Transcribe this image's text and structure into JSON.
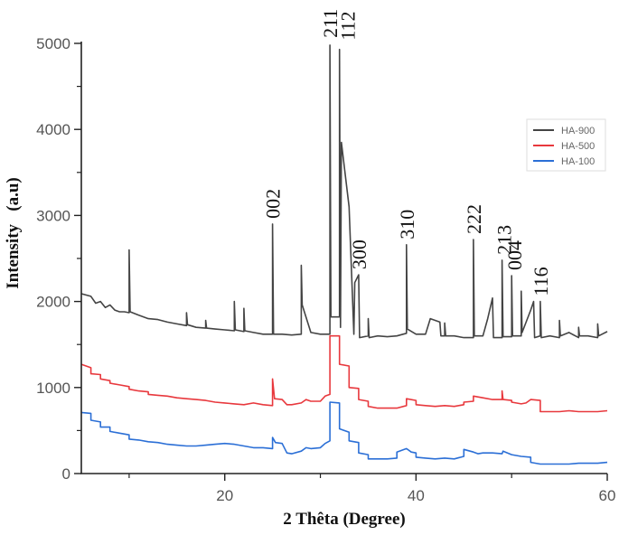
{
  "chart_data": {
    "type": "line",
    "title": "",
    "xlabel": "2 Thêta (Degree)",
    "ylabel": "Intensity   (a.u)",
    "xlim": [
      5,
      60
    ],
    "ylim": [
      0,
      5000
    ],
    "x_ticks": [
      20,
      40,
      60
    ],
    "x_minor_ticks": [
      10,
      30,
      50
    ],
    "y_ticks": [
      0,
      1000,
      2000,
      3000,
      4000,
      5000
    ],
    "y_minor_ticks": [
      500,
      1500,
      2500,
      3500,
      4500
    ],
    "grid": false,
    "legend_position": "upper right",
    "series": [
      {
        "name": "HA-900",
        "color": "#444444",
        "points": [
          [
            5,
            2090
          ],
          [
            6,
            2060
          ],
          [
            6.5,
            1980
          ],
          [
            7,
            2000
          ],
          [
            7.5,
            1930
          ],
          [
            8,
            1960
          ],
          [
            8.5,
            1900
          ],
          [
            9,
            1880
          ],
          [
            9.5,
            1880
          ],
          [
            10,
            1870
          ],
          [
            10,
            2600
          ],
          [
            10.1,
            1880
          ],
          [
            11,
            1840
          ],
          [
            12,
            1800
          ],
          [
            13,
            1790
          ],
          [
            14,
            1760
          ],
          [
            15,
            1740
          ],
          [
            16,
            1720
          ],
          [
            16,
            1870
          ],
          [
            16.1,
            1730
          ],
          [
            17,
            1700
          ],
          [
            18,
            1690
          ],
          [
            18,
            1780
          ],
          [
            18.1,
            1690
          ],
          [
            19,
            1680
          ],
          [
            20,
            1670
          ],
          [
            21,
            1660
          ],
          [
            21,
            2000
          ],
          [
            21.1,
            1670
          ],
          [
            22,
            1650
          ],
          [
            22,
            1920
          ],
          [
            22.1,
            1660
          ],
          [
            23,
            1640
          ],
          [
            24,
            1620
          ],
          [
            25,
            1620
          ],
          [
            25,
            2900
          ],
          [
            25.1,
            1620
          ],
          [
            26,
            1620
          ],
          [
            27,
            1610
          ],
          [
            28,
            1620
          ],
          [
            28,
            2420
          ],
          [
            28.1,
            1960
          ],
          [
            29,
            1640
          ],
          [
            30,
            1620
          ],
          [
            31,
            1620
          ],
          [
            31,
            4980
          ],
          [
            31.1,
            1820
          ],
          [
            32,
            1820
          ],
          [
            32,
            4930
          ],
          [
            32.1,
            1700
          ],
          [
            32.2,
            3850
          ],
          [
            33,
            3100
          ],
          [
            33.5,
            1620
          ],
          [
            33.6,
            2220
          ],
          [
            34,
            2310
          ],
          [
            34.1,
            1580
          ],
          [
            35,
            1600
          ],
          [
            35,
            1800
          ],
          [
            35.1,
            1580
          ],
          [
            36,
            1600
          ],
          [
            37,
            1590
          ],
          [
            38,
            1600
          ],
          [
            39,
            1630
          ],
          [
            39,
            2660
          ],
          [
            39.1,
            1680
          ],
          [
            40,
            1620
          ],
          [
            41,
            1620
          ],
          [
            41.5,
            1800
          ],
          [
            42,
            1780
          ],
          [
            42.5,
            1760
          ],
          [
            42.6,
            1600
          ],
          [
            43,
            1600
          ],
          [
            43,
            1750
          ],
          [
            43.1,
            1600
          ],
          [
            44,
            1600
          ],
          [
            45,
            1580
          ],
          [
            46,
            1580
          ],
          [
            46,
            2720
          ],
          [
            46.1,
            1600
          ],
          [
            47,
            1600
          ],
          [
            47.5,
            1800
          ],
          [
            48,
            2040
          ],
          [
            48.1,
            1580
          ],
          [
            49,
            1580
          ],
          [
            49,
            2480
          ],
          [
            49.1,
            1590
          ],
          [
            50,
            1590
          ],
          [
            50,
            2300
          ],
          [
            50.1,
            1600
          ],
          [
            51,
            1600
          ],
          [
            51,
            2120
          ],
          [
            51.1,
            1640
          ],
          [
            52,
            1900
          ],
          [
            52.3,
            2000
          ],
          [
            52.4,
            1580
          ],
          [
            53,
            1600
          ],
          [
            53,
            2000
          ],
          [
            53.1,
            1580
          ],
          [
            54,
            1600
          ],
          [
            55,
            1580
          ],
          [
            55,
            1780
          ],
          [
            55.1,
            1600
          ],
          [
            56,
            1640
          ],
          [
            57,
            1580
          ],
          [
            57,
            1700
          ],
          [
            57.1,
            1600
          ],
          [
            58,
            1600
          ],
          [
            59,
            1580
          ],
          [
            59,
            1740
          ],
          [
            59.1,
            1600
          ],
          [
            60,
            1650
          ]
        ]
      },
      {
        "name": "HA-500",
        "color": "#e8383d",
        "points": [
          [
            5,
            1270
          ],
          [
            6,
            1230
          ],
          [
            6,
            1160
          ],
          [
            7,
            1150
          ],
          [
            7,
            1100
          ],
          [
            8,
            1080
          ],
          [
            8,
            1050
          ],
          [
            9,
            1030
          ],
          [
            10,
            1010
          ],
          [
            10,
            980
          ],
          [
            11,
            960
          ],
          [
            12,
            950
          ],
          [
            12,
            920
          ],
          [
            13,
            910
          ],
          [
            14,
            900
          ],
          [
            15,
            880
          ],
          [
            16,
            870
          ],
          [
            17,
            860
          ],
          [
            18,
            850
          ],
          [
            19,
            830
          ],
          [
            20,
            820
          ],
          [
            21,
            810
          ],
          [
            22,
            800
          ],
          [
            23,
            820
          ],
          [
            24,
            800
          ],
          [
            25,
            790
          ],
          [
            25,
            1100
          ],
          [
            25.2,
            870
          ],
          [
            26,
            860
          ],
          [
            26.5,
            800
          ],
          [
            27,
            800
          ],
          [
            28,
            820
          ],
          [
            28.5,
            860
          ],
          [
            29,
            840
          ],
          [
            30,
            840
          ],
          [
            30.5,
            900
          ],
          [
            31,
            920
          ],
          [
            31,
            1600
          ],
          [
            32,
            1600
          ],
          [
            32,
            1270
          ],
          [
            33,
            1250
          ],
          [
            33,
            1000
          ],
          [
            34,
            990
          ],
          [
            34,
            860
          ],
          [
            35,
            840
          ],
          [
            35,
            780
          ],
          [
            36,
            760
          ],
          [
            37,
            760
          ],
          [
            38,
            760
          ],
          [
            39,
            790
          ],
          [
            39,
            870
          ],
          [
            40,
            850
          ],
          [
            40,
            800
          ],
          [
            41,
            790
          ],
          [
            42,
            780
          ],
          [
            43,
            790
          ],
          [
            44,
            780
          ],
          [
            45,
            800
          ],
          [
            45,
            830
          ],
          [
            46,
            840
          ],
          [
            46,
            900
          ],
          [
            47,
            880
          ],
          [
            48,
            860
          ],
          [
            49,
            860
          ],
          [
            49,
            960
          ],
          [
            49.1,
            860
          ],
          [
            50,
            850
          ],
          [
            50,
            830
          ],
          [
            51,
            810
          ],
          [
            51.5,
            820
          ],
          [
            52,
            860
          ],
          [
            53,
            850
          ],
          [
            53,
            720
          ],
          [
            54,
            720
          ],
          [
            55,
            720
          ],
          [
            56,
            730
          ],
          [
            57,
            720
          ],
          [
            58,
            720
          ],
          [
            59,
            720
          ],
          [
            60,
            730
          ]
        ]
      },
      {
        "name": "HA-100",
        "color": "#2b6fd6",
        "points": [
          [
            5,
            710
          ],
          [
            6,
            700
          ],
          [
            6,
            620
          ],
          [
            7,
            600
          ],
          [
            7,
            540
          ],
          [
            8,
            540
          ],
          [
            8,
            490
          ],
          [
            9,
            470
          ],
          [
            10,
            450
          ],
          [
            10,
            400
          ],
          [
            11,
            390
          ],
          [
            12,
            370
          ],
          [
            13,
            360
          ],
          [
            14,
            340
          ],
          [
            15,
            330
          ],
          [
            16,
            320
          ],
          [
            17,
            320
          ],
          [
            18,
            330
          ],
          [
            19,
            340
          ],
          [
            20,
            350
          ],
          [
            21,
            340
          ],
          [
            22,
            320
          ],
          [
            23,
            300
          ],
          [
            24,
            300
          ],
          [
            25,
            290
          ],
          [
            25,
            420
          ],
          [
            25.3,
            360
          ],
          [
            26,
            350
          ],
          [
            26.5,
            240
          ],
          [
            27,
            230
          ],
          [
            28,
            260
          ],
          [
            28.5,
            300
          ],
          [
            29,
            290
          ],
          [
            30,
            300
          ],
          [
            30.5,
            350
          ],
          [
            31,
            380
          ],
          [
            31,
            830
          ],
          [
            32,
            820
          ],
          [
            32,
            520
          ],
          [
            33,
            480
          ],
          [
            33,
            380
          ],
          [
            34,
            360
          ],
          [
            34,
            240
          ],
          [
            35,
            220
          ],
          [
            35,
            170
          ],
          [
            36,
            170
          ],
          [
            37,
            170
          ],
          [
            38,
            180
          ],
          [
            38,
            250
          ],
          [
            39,
            290
          ],
          [
            39.5,
            250
          ],
          [
            40,
            240
          ],
          [
            40,
            190
          ],
          [
            41,
            180
          ],
          [
            42,
            170
          ],
          [
            43,
            180
          ],
          [
            44,
            170
          ],
          [
            45,
            200
          ],
          [
            45,
            280
          ],
          [
            46,
            250
          ],
          [
            46.5,
            230
          ],
          [
            47,
            240
          ],
          [
            48,
            240
          ],
          [
            49,
            230
          ],
          [
            49.1,
            260
          ],
          [
            50,
            220
          ],
          [
            51,
            200
          ],
          [
            52,
            190
          ],
          [
            52,
            130
          ],
          [
            53,
            110
          ],
          [
            54,
            110
          ],
          [
            55,
            110
          ],
          [
            56,
            110
          ],
          [
            57,
            120
          ],
          [
            58,
            120
          ],
          [
            59,
            120
          ],
          [
            60,
            130
          ]
        ]
      }
    ],
    "annotations": [
      {
        "text": "002",
        "x": 25,
        "y": 2900
      },
      {
        "text": "211",
        "x": 31,
        "y": 4980
      },
      {
        "text": "112",
        "x": 32,
        "y": 4930
      },
      {
        "text": "300",
        "x": 34,
        "y": 2310
      },
      {
        "text": "310",
        "x": 39,
        "y": 2660
      },
      {
        "text": "222",
        "x": 46,
        "y": 2720
      },
      {
        "text": "213",
        "x": 49,
        "y": 2480
      },
      {
        "text": "004",
        "x": 50,
        "y": 2300
      },
      {
        "text": "116",
        "x": 53,
        "y": 2000
      }
    ]
  },
  "legend": {
    "items": [
      {
        "label": "HA-900",
        "color": "#444444"
      },
      {
        "label": "HA-500",
        "color": "#e8383d"
      },
      {
        "label": "HA-100",
        "color": "#2b6fd6"
      }
    ]
  }
}
